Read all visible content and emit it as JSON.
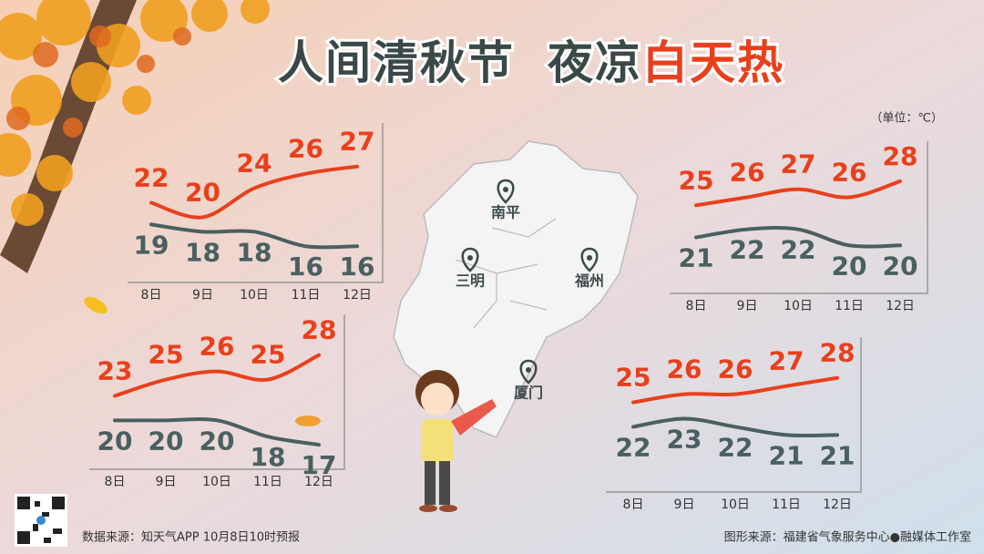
{
  "header": {
    "title_main": "人间清秋节",
    "title_sub": "夜凉",
    "title_highlight": "白天热"
  },
  "unit": "（单位：℃）",
  "map_labels": [
    "南平",
    "三明",
    "福州",
    "厦门"
  ],
  "footer": {
    "source": "数据来源：知天气APP  10月8日10时预报",
    "credit": "图形来源：福建省气象服务中心●融媒体工作室"
  },
  "chart_data": [
    {
      "type": "line",
      "categories": [
        "8日",
        "9日",
        "10日",
        "11日",
        "12日"
      ],
      "ylim": [
        11,
        33
      ],
      "series": [
        {
          "color": "#e8401c",
          "values": [
            22,
            20,
            24,
            26,
            27
          ]
        },
        {
          "color": "#4a6060",
          "values": [
            19,
            18,
            18,
            16,
            16
          ]
        }
      ]
    },
    {
      "type": "line",
      "categories": [
        "8日",
        "9日",
        "10日",
        "11日",
        "12日"
      ],
      "ylim": [
        14,
        33
      ],
      "series": [
        {
          "color": "#e8401c",
          "values": [
            25,
            26,
            27,
            26,
            28
          ]
        },
        {
          "color": "#4a6060",
          "values": [
            21,
            22,
            22,
            20,
            20
          ]
        }
      ]
    },
    {
      "type": "line",
      "categories": [
        "8日",
        "9日",
        "10日",
        "11日",
        "12日"
      ],
      "ylim": [
        14,
        33
      ],
      "series": [
        {
          "color": "#e8401c",
          "values": [
            23,
            25,
            26,
            25,
            28
          ]
        },
        {
          "color": "#4a6060",
          "values": [
            20,
            20,
            20,
            18,
            17
          ]
        }
      ]
    },
    {
      "type": "line",
      "categories": [
        "8日",
        "9日",
        "10日",
        "11日",
        "12日"
      ],
      "ylim": [
        14,
        33
      ],
      "series": [
        {
          "color": "#e8401c",
          "values": [
            25,
            26,
            26,
            27,
            28
          ]
        },
        {
          "color": "#4a6060",
          "values": [
            22,
            23,
            22,
            21,
            21
          ]
        }
      ]
    }
  ]
}
